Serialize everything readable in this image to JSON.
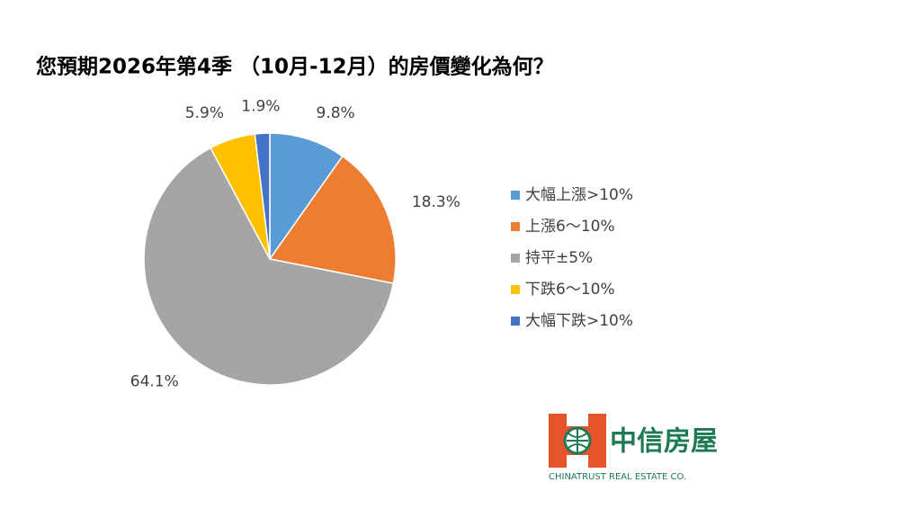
{
  "chart_data": {
    "type": "pie",
    "title": "您預期2026年第4季 （10月-12月）的房價變化為何？",
    "categories": [
      "大幅上漲>10%",
      "上漲6～10%",
      "持平±5%",
      "下跌6～10%",
      "大幅下跌>10%"
    ],
    "values": [
      9.8,
      18.3,
      64.1,
      5.9,
      1.9
    ],
    "value_labels": [
      "9.8%",
      "18.3%",
      "64.1%",
      "5.9%",
      "1.9%"
    ],
    "colors": [
      "#5b9bd5",
      "#ed7d31",
      "#a5a5a5",
      "#ffc000",
      "#4472c4"
    ],
    "legend": "right"
  },
  "logo": {
    "name": "中信房屋",
    "tagline": "CHINATRUST REAL ESTATE CO."
  }
}
